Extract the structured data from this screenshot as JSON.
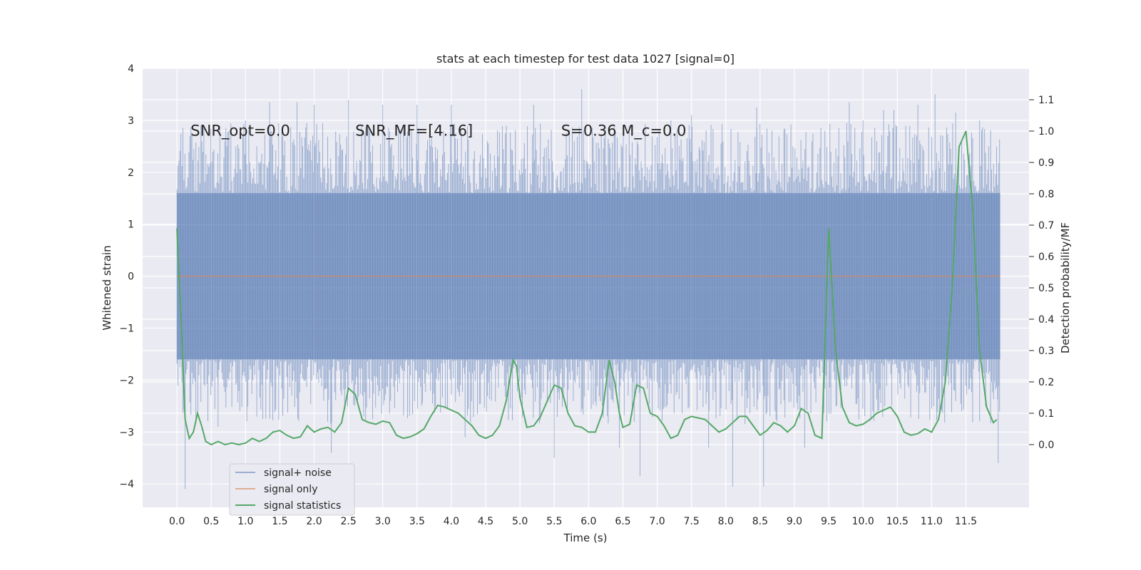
{
  "chart_data": {
    "type": "line",
    "title": "stats at each timestep for test data 1027 [signal=0]",
    "xlabel": "Time (s)",
    "ylabel": "Whitened strain",
    "y2label": "Detection probability/MF",
    "xlim": [
      -0.5,
      12.42
    ],
    "ylim": [
      -4.45,
      4.0
    ],
    "y2lim": [
      -0.2,
      1.2
    ],
    "x_ticks": [
      0.0,
      0.5,
      1.0,
      1.5,
      2.0,
      2.5,
      3.0,
      3.5,
      4.0,
      4.5,
      5.0,
      5.5,
      6.0,
      6.5,
      7.0,
      7.5,
      8.0,
      8.5,
      9.0,
      9.5,
      10.0,
      10.5,
      11.0,
      11.5
    ],
    "x_tick_labels": [
      "0.0",
      "0.5",
      "1.0",
      "1.5",
      "2.0",
      "2.5",
      "3.0",
      "3.5",
      "4.0",
      "4.5",
      "5.0",
      "5.5",
      "6.0",
      "6.5",
      "7.0",
      "7.5",
      "8.0",
      "8.5",
      "9.0",
      "9.5",
      "10.0",
      "10.5",
      "11.0",
      "11.5"
    ],
    "y_ticks": [
      4,
      3,
      2,
      1,
      0,
      -1,
      -2,
      -3,
      -4
    ],
    "y_tick_labels": [
      "4",
      "3",
      "2",
      "1",
      "0",
      "−1",
      "−2",
      "−3",
      "−4"
    ],
    "y2_ticks": [
      1.1,
      1.0,
      0.9,
      0.8,
      0.7,
      0.6,
      0.5,
      0.4,
      0.3,
      0.2,
      0.1,
      0.0
    ],
    "y2_tick_labels": [
      "1.1",
      "1.0",
      "0.9",
      "0.8",
      "0.7",
      "0.6",
      "0.5",
      "0.4",
      "0.3",
      "0.2",
      "0.1",
      "0.0"
    ],
    "grid": true,
    "legend_position": "lower-left",
    "annotations": [
      {
        "text": "SNR_opt=0.0",
        "x": 0.2,
        "y": 2.8
      },
      {
        "text": "SNR_MF=[4.16]",
        "x": 2.6,
        "y": 2.8
      },
      {
        "text": "S=0.36   M_c=0.0",
        "x": 5.6,
        "y": 2.8
      }
    ],
    "series": [
      {
        "name": "signal+ noise",
        "axis": "left",
        "color": "#4c72b0",
        "style": "dense-noise",
        "x_range": [
          0.0,
          12.0
        ],
        "band": [
          -1.6,
          1.6
        ],
        "sample_extremes": [
          [
            0.12,
            -4.1
          ],
          [
            0.35,
            2.9
          ],
          [
            0.6,
            -2.9
          ],
          [
            1.0,
            3.0
          ],
          [
            1.35,
            3.35
          ],
          [
            1.75,
            3.35
          ],
          [
            2.0,
            3.3
          ],
          [
            2.25,
            -3.4
          ],
          [
            2.5,
            3.4
          ],
          [
            3.0,
            3.3
          ],
          [
            3.5,
            3.3
          ],
          [
            4.0,
            3.3
          ],
          [
            4.2,
            -3.1
          ],
          [
            5.2,
            3.3
          ],
          [
            5.5,
            -3.5
          ],
          [
            5.9,
            3.6
          ],
          [
            6.45,
            -3.3
          ],
          [
            6.75,
            -3.85
          ],
          [
            7.2,
            3.0
          ],
          [
            7.5,
            3.1
          ],
          [
            7.75,
            -3.3
          ],
          [
            8.1,
            -4.05
          ],
          [
            8.45,
            3.25
          ],
          [
            8.55,
            -4.05
          ],
          [
            9.15,
            -3.3
          ],
          [
            9.8,
            3.35
          ],
          [
            10.0,
            3.0
          ],
          [
            10.3,
            3.2
          ],
          [
            10.45,
            3.2
          ],
          [
            10.8,
            3.3
          ],
          [
            11.05,
            3.5
          ],
          [
            11.35,
            3.15
          ],
          [
            11.7,
            3.0
          ],
          [
            11.97,
            -3.6
          ]
        ]
      },
      {
        "name": "signal only",
        "axis": "left",
        "color": "#dd8452",
        "x": [
          0.0,
          12.0
        ],
        "y": [
          0.0,
          0.0
        ]
      },
      {
        "name": "signal statistics",
        "axis": "right",
        "color": "#55a868",
        "x": [
          0.0,
          0.06,
          0.12,
          0.18,
          0.24,
          0.3,
          0.36,
          0.42,
          0.5,
          0.6,
          0.7,
          0.8,
          0.9,
          1.0,
          1.1,
          1.2,
          1.3,
          1.4,
          1.5,
          1.6,
          1.7,
          1.8,
          1.9,
          2.0,
          2.1,
          2.2,
          2.3,
          2.4,
          2.5,
          2.6,
          2.7,
          2.8,
          2.9,
          3.0,
          3.1,
          3.2,
          3.3,
          3.4,
          3.5,
          3.6,
          3.7,
          3.8,
          3.9,
          4.0,
          4.1,
          4.2,
          4.3,
          4.4,
          4.5,
          4.6,
          4.7,
          4.8,
          4.9,
          4.95,
          5.0,
          5.1,
          5.2,
          5.3,
          5.4,
          5.5,
          5.6,
          5.7,
          5.8,
          5.9,
          6.0,
          6.1,
          6.2,
          6.3,
          6.38,
          6.45,
          6.5,
          6.6,
          6.7,
          6.8,
          6.9,
          7.0,
          7.1,
          7.2,
          7.3,
          7.4,
          7.5,
          7.6,
          7.7,
          7.8,
          7.9,
          8.0,
          8.1,
          8.2,
          8.3,
          8.4,
          8.5,
          8.6,
          8.7,
          8.8,
          8.9,
          9.0,
          9.1,
          9.2,
          9.3,
          9.4,
          9.5,
          9.6,
          9.7,
          9.8,
          9.9,
          10.0,
          10.1,
          10.2,
          10.3,
          10.4,
          10.5,
          10.6,
          10.7,
          10.8,
          10.9,
          11.0,
          11.1,
          11.2,
          11.3,
          11.4,
          11.5,
          11.6,
          11.7,
          11.8,
          11.9,
          11.95
        ],
        "y": [
          0.69,
          0.4,
          0.08,
          0.02,
          0.04,
          0.1,
          0.06,
          0.01,
          0.0,
          0.01,
          0.0,
          0.005,
          0.0,
          0.005,
          0.02,
          0.01,
          0.02,
          0.04,
          0.045,
          0.03,
          0.02,
          0.025,
          0.06,
          0.04,
          0.05,
          0.055,
          0.04,
          0.07,
          0.18,
          0.16,
          0.08,
          0.07,
          0.065,
          0.075,
          0.07,
          0.03,
          0.02,
          0.025,
          0.035,
          0.05,
          0.09,
          0.125,
          0.12,
          0.11,
          0.1,
          0.08,
          0.06,
          0.03,
          0.02,
          0.03,
          0.06,
          0.14,
          0.27,
          0.25,
          0.15,
          0.055,
          0.06,
          0.09,
          0.14,
          0.19,
          0.18,
          0.1,
          0.06,
          0.055,
          0.04,
          0.04,
          0.1,
          0.27,
          0.2,
          0.1,
          0.055,
          0.065,
          0.19,
          0.18,
          0.1,
          0.09,
          0.06,
          0.02,
          0.03,
          0.08,
          0.09,
          0.085,
          0.08,
          0.06,
          0.04,
          0.05,
          0.07,
          0.09,
          0.09,
          0.06,
          0.03,
          0.045,
          0.07,
          0.06,
          0.04,
          0.06,
          0.115,
          0.1,
          0.03,
          0.02,
          0.69,
          0.3,
          0.12,
          0.07,
          0.06,
          0.065,
          0.08,
          0.1,
          0.11,
          0.12,
          0.09,
          0.04,
          0.03,
          0.035,
          0.05,
          0.04,
          0.08,
          0.2,
          0.5,
          0.95,
          1.0,
          0.75,
          0.3,
          0.12,
          0.07,
          0.08
        ]
      }
    ]
  }
}
